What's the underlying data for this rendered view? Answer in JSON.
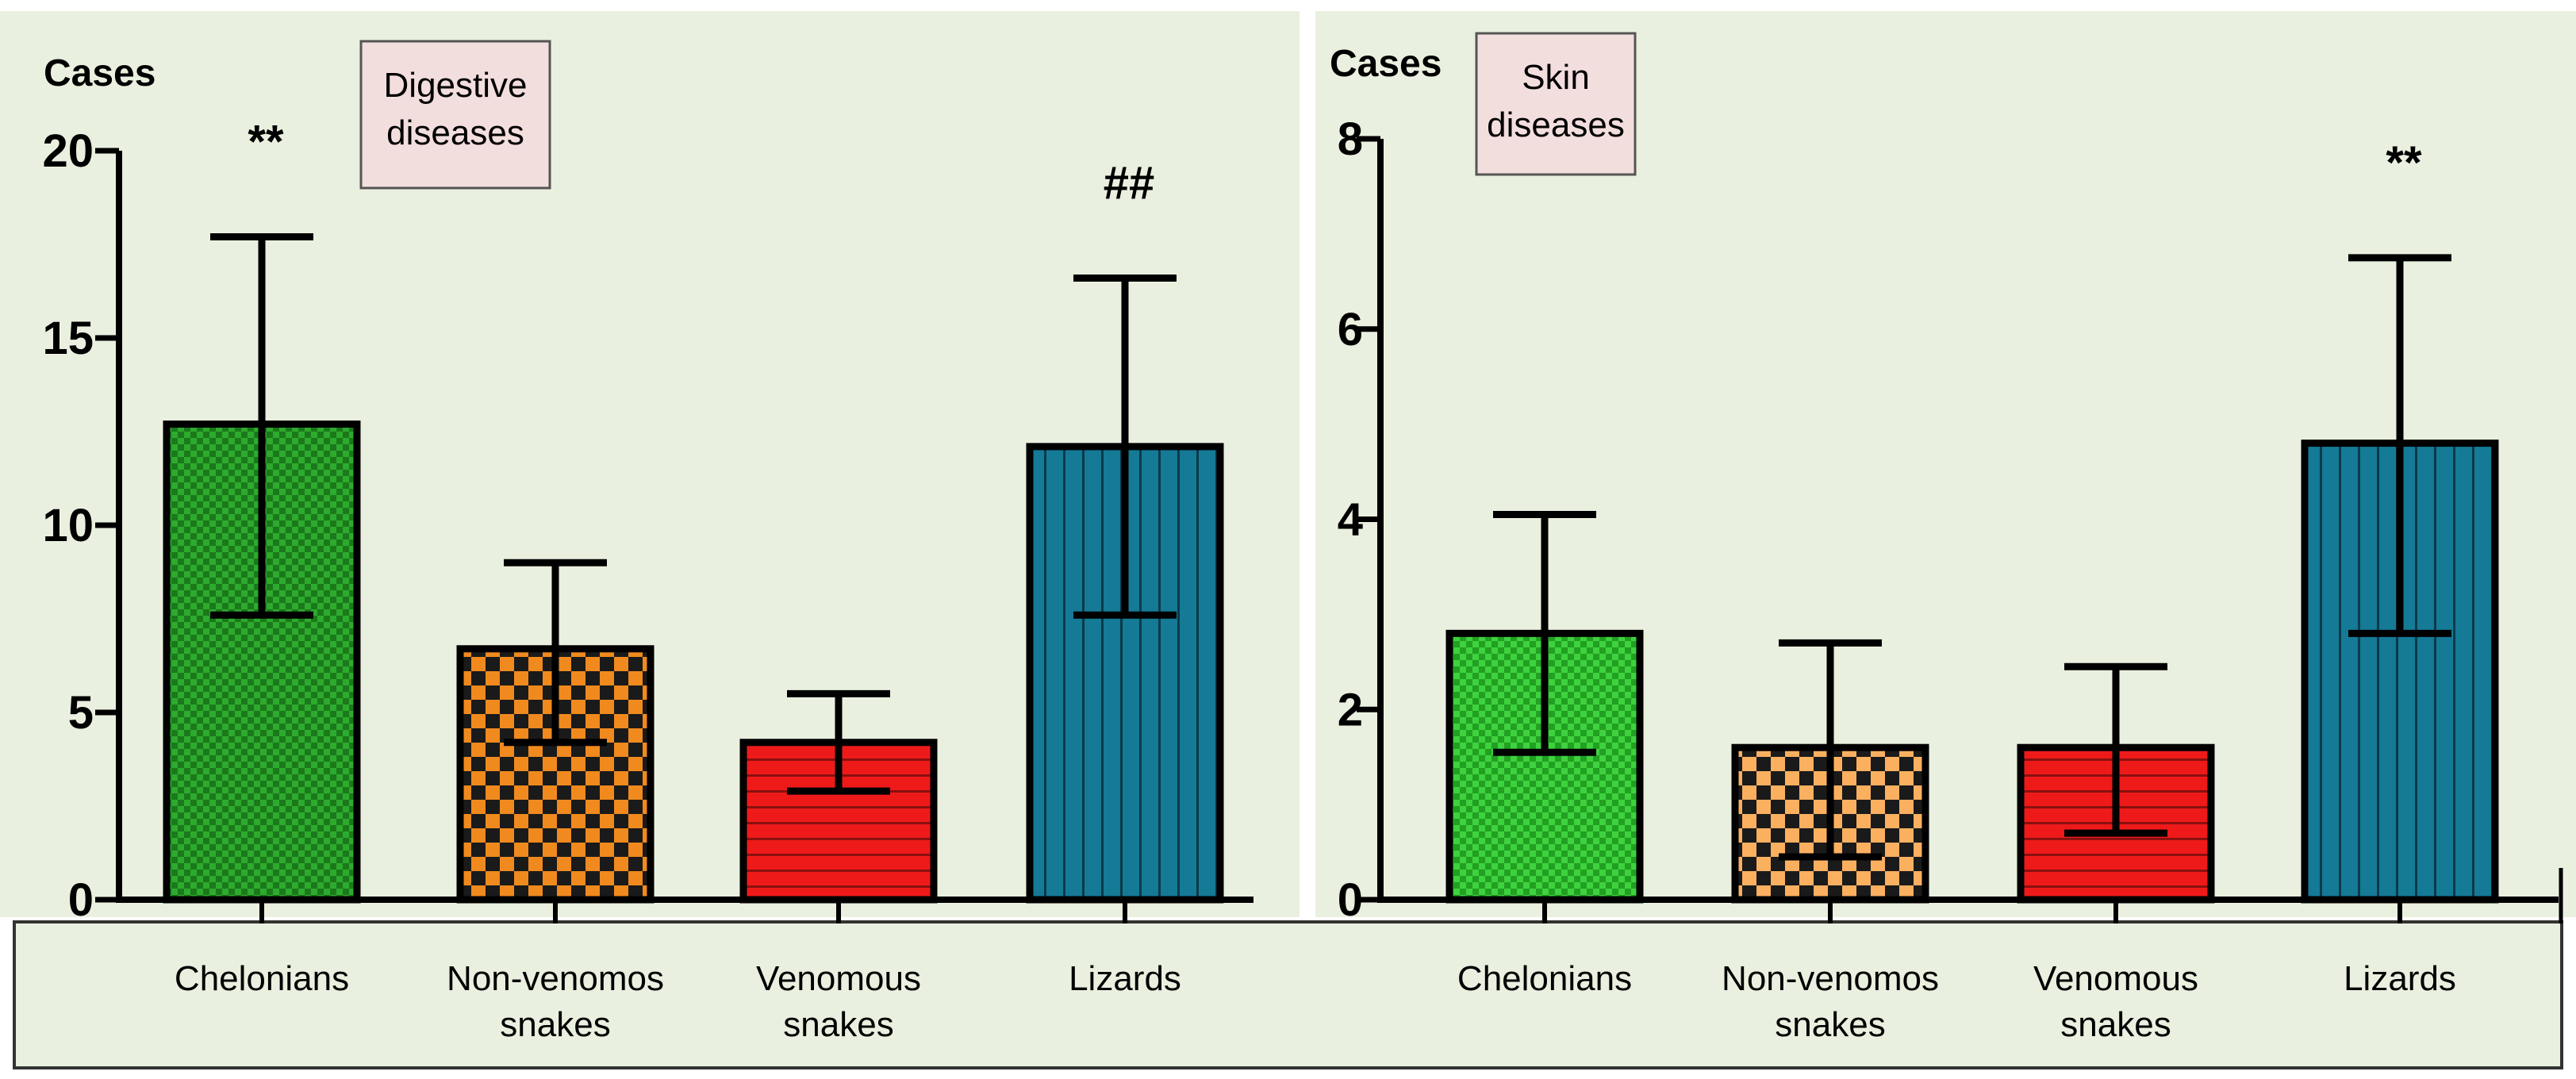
{
  "chart_data": [
    {
      "type": "bar",
      "title": "Digestive diseases",
      "title_lines": [
        "Digestive",
        "diseases"
      ],
      "ylabel": "Cases",
      "xlabel": "",
      "ylim": [
        0,
        20
      ],
      "yticks": [
        0,
        5,
        10,
        15,
        20
      ],
      "categories": [
        "Chelonians",
        "Non-venomos snakes",
        "Venomous snakes",
        "Lizards"
      ],
      "category_lines": [
        [
          "Chelonians"
        ],
        [
          "Non-venomos",
          "snakes"
        ],
        [
          "Venomous",
          "snakes"
        ],
        [
          "Lizards"
        ]
      ],
      "values": [
        12.7,
        6.7,
        4.2,
        12.1
      ],
      "error_low": [
        7.6,
        4.2,
        2.9,
        7.6
      ],
      "error_high": [
        17.7,
        9.0,
        5.5,
        16.6
      ],
      "annotations": [
        "**",
        "",
        "",
        "##"
      ],
      "colors": [
        "#2eaa2e",
        "#f08a1e",
        "#ee1a1a",
        "#147a96"
      ],
      "patterns": [
        "checker-fine",
        "checker-coarse",
        "hstripe",
        "vstripe"
      ]
    },
    {
      "type": "bar",
      "title": "Skin diseases",
      "title_lines": [
        "Skin",
        "diseases"
      ],
      "ylabel": "Cases",
      "xlabel": "",
      "ylim": [
        0,
        8
      ],
      "yticks": [
        0,
        2,
        4,
        6,
        8
      ],
      "categories": [
        "Chelonians",
        "Non-venomos snakes",
        "Venomous snakes",
        "Lizards"
      ],
      "category_lines": [
        [
          "Chelonians"
        ],
        [
          "Non-venomos",
          "snakes"
        ],
        [
          "Venomous",
          "snakes"
        ],
        [
          "Lizards"
        ]
      ],
      "values": [
        2.8,
        1.6,
        1.6,
        4.8
      ],
      "error_low": [
        1.55,
        0.45,
        0.7,
        2.8
      ],
      "error_high": [
        4.05,
        2.7,
        2.45,
        6.75
      ],
      "annotations": [
        "",
        "",
        "",
        "**"
      ],
      "colors": [
        "#3ed23e",
        "#fbb060",
        "#ee1a1a",
        "#147a96"
      ],
      "patterns": [
        "checker-fine",
        "checker-coarse",
        "hstripe",
        "vstripe"
      ]
    }
  ]
}
